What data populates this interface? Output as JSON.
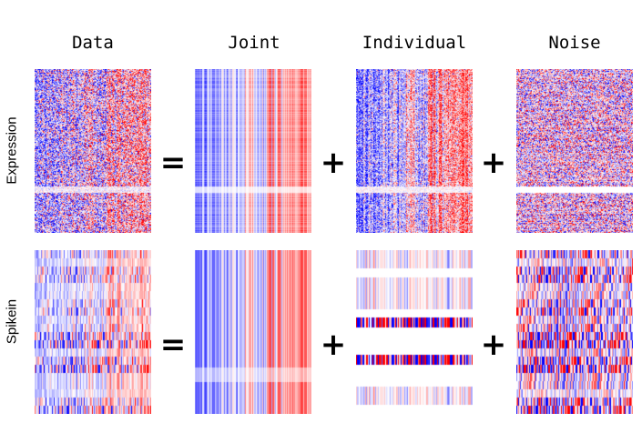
{
  "columns": [
    "Data",
    "Joint",
    "Individual",
    "Noise"
  ],
  "rows": [
    "Expression",
    "Spikein"
  ],
  "operators": [
    "=",
    "+",
    "+"
  ],
  "colors": {
    "negative": "#0000ff",
    "neutral": "#ffffff",
    "positive": "#ff0000"
  },
  "panel_style": {
    "expression": {
      "data": "noisy",
      "joint": "column-banded",
      "individual": "column-banded-noisy",
      "noise": "random"
    },
    "spikein": {
      "data": "row-blocks",
      "joint": "column-banded",
      "individual": "sparse-row-bands",
      "noise": "row-blocks"
    }
  }
}
